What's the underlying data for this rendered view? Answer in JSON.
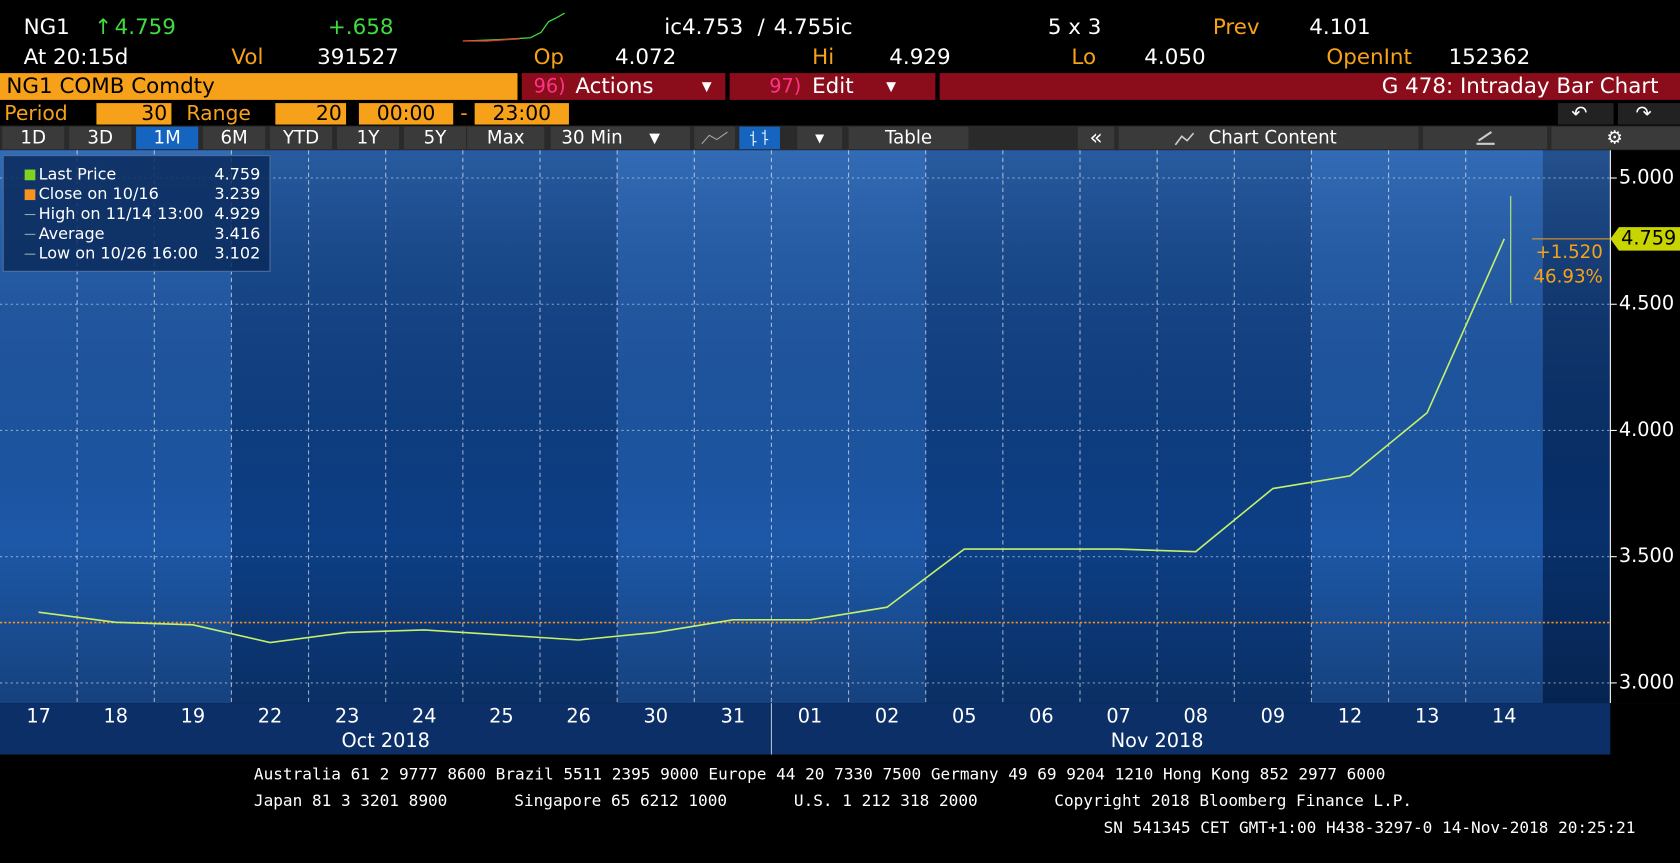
{
  "header": {
    "ticker": "NG1",
    "last": "4.759",
    "change": "+.658",
    "bid": "ic4.753",
    "ask": "4.755ic",
    "size": "5 x 3",
    "prev_label": "Prev",
    "prev": "4.101",
    "time": "At 20:15d",
    "vol_label": "Vol",
    "vol": "391527",
    "open_label": "Op",
    "open": "4.072",
    "high_label": "Hi",
    "high": "4.929",
    "low_label": "Lo",
    "low": "4.050",
    "oi_label": "OpenInt",
    "oi": "152362"
  },
  "title_bar": {
    "security": "NG1 COMB Comdty",
    "actions_num": "96)",
    "actions": "Actions",
    "edit_num": "97)",
    "edit": "Edit",
    "function": "G 478: Intraday Bar Chart"
  },
  "settings": {
    "period_label": "Period",
    "period": "30",
    "range_label": "Range",
    "range": "20",
    "start": "00:00",
    "end": "23:00"
  },
  "toolbar": {
    "ranges": [
      "1D",
      "3D",
      "1M",
      "6M",
      "YTD",
      "1Y",
      "5Y",
      "Max"
    ],
    "active": 2,
    "interval": "30 Min",
    "table": "Table",
    "chart_content": "Chart Content"
  },
  "chart_data": {
    "type": "line",
    "categories": [
      "17",
      "18",
      "19",
      "22",
      "23",
      "24",
      "25",
      "26",
      "30",
      "31",
      "01",
      "02",
      "05",
      "06",
      "07",
      "08",
      "09",
      "12",
      "13",
      "14"
    ],
    "month_labels": [
      "Oct 2018",
      "Nov 2018"
    ],
    "series": [
      {
        "name": "Last Price",
        "color": "#c5f06a",
        "values": [
          3.28,
          3.24,
          3.23,
          3.16,
          3.2,
          3.21,
          3.19,
          3.17,
          3.2,
          3.25,
          3.25,
          3.3,
          3.53,
          3.53,
          3.53,
          3.52,
          3.77,
          3.82,
          4.07,
          4.759
        ]
      }
    ],
    "legend": [
      {
        "label": "Last Price",
        "value": 4.759,
        "color": "#7ed321"
      },
      {
        "label": "Close on 10/16",
        "value": 3.239,
        "color": "#f7931e"
      },
      {
        "label": "High on 11/14 13:00",
        "value": 4.929,
        "color": "#9aa"
      },
      {
        "label": "Average",
        "value": 3.416,
        "color": "#9aa"
      },
      {
        "label": "Low on 10/26 16:00",
        "value": 3.102,
        "color": "#9aa"
      }
    ],
    "change": "+1.520",
    "change_pct": "46.93%",
    "ylim": [
      2.92,
      5.11
    ],
    "yticks": [
      {
        "value": 3,
        "label": "3.000"
      },
      {
        "value": 3.5,
        "label": "3.500"
      },
      {
        "value": 4,
        "label": "4.000"
      },
      {
        "value": 4.5,
        "label": "4.500"
      },
      {
        "value": 5,
        "label": "5.000"
      }
    ],
    "grid": true
  },
  "footer": {
    "lines": [
      [
        "Australia 61 2 9777 8600 Brazil 5511 2395 9000 Europe 44 20 7330 7500 Germany 49 69 9204 1210 Hong Kong 852 2977 6000"
      ],
      [
        "Japan 81 3 3201 8900",
        "Singapore 65 6212 1000",
        "U.S. 1 212 318 2000",
        "Copyright 2018 Bloomberg Finance L.P."
      ],
      [
        "SN 541345 CET  GMT+1:00 H438-3297-0 14-Nov-2018 20:25:21"
      ]
    ]
  }
}
